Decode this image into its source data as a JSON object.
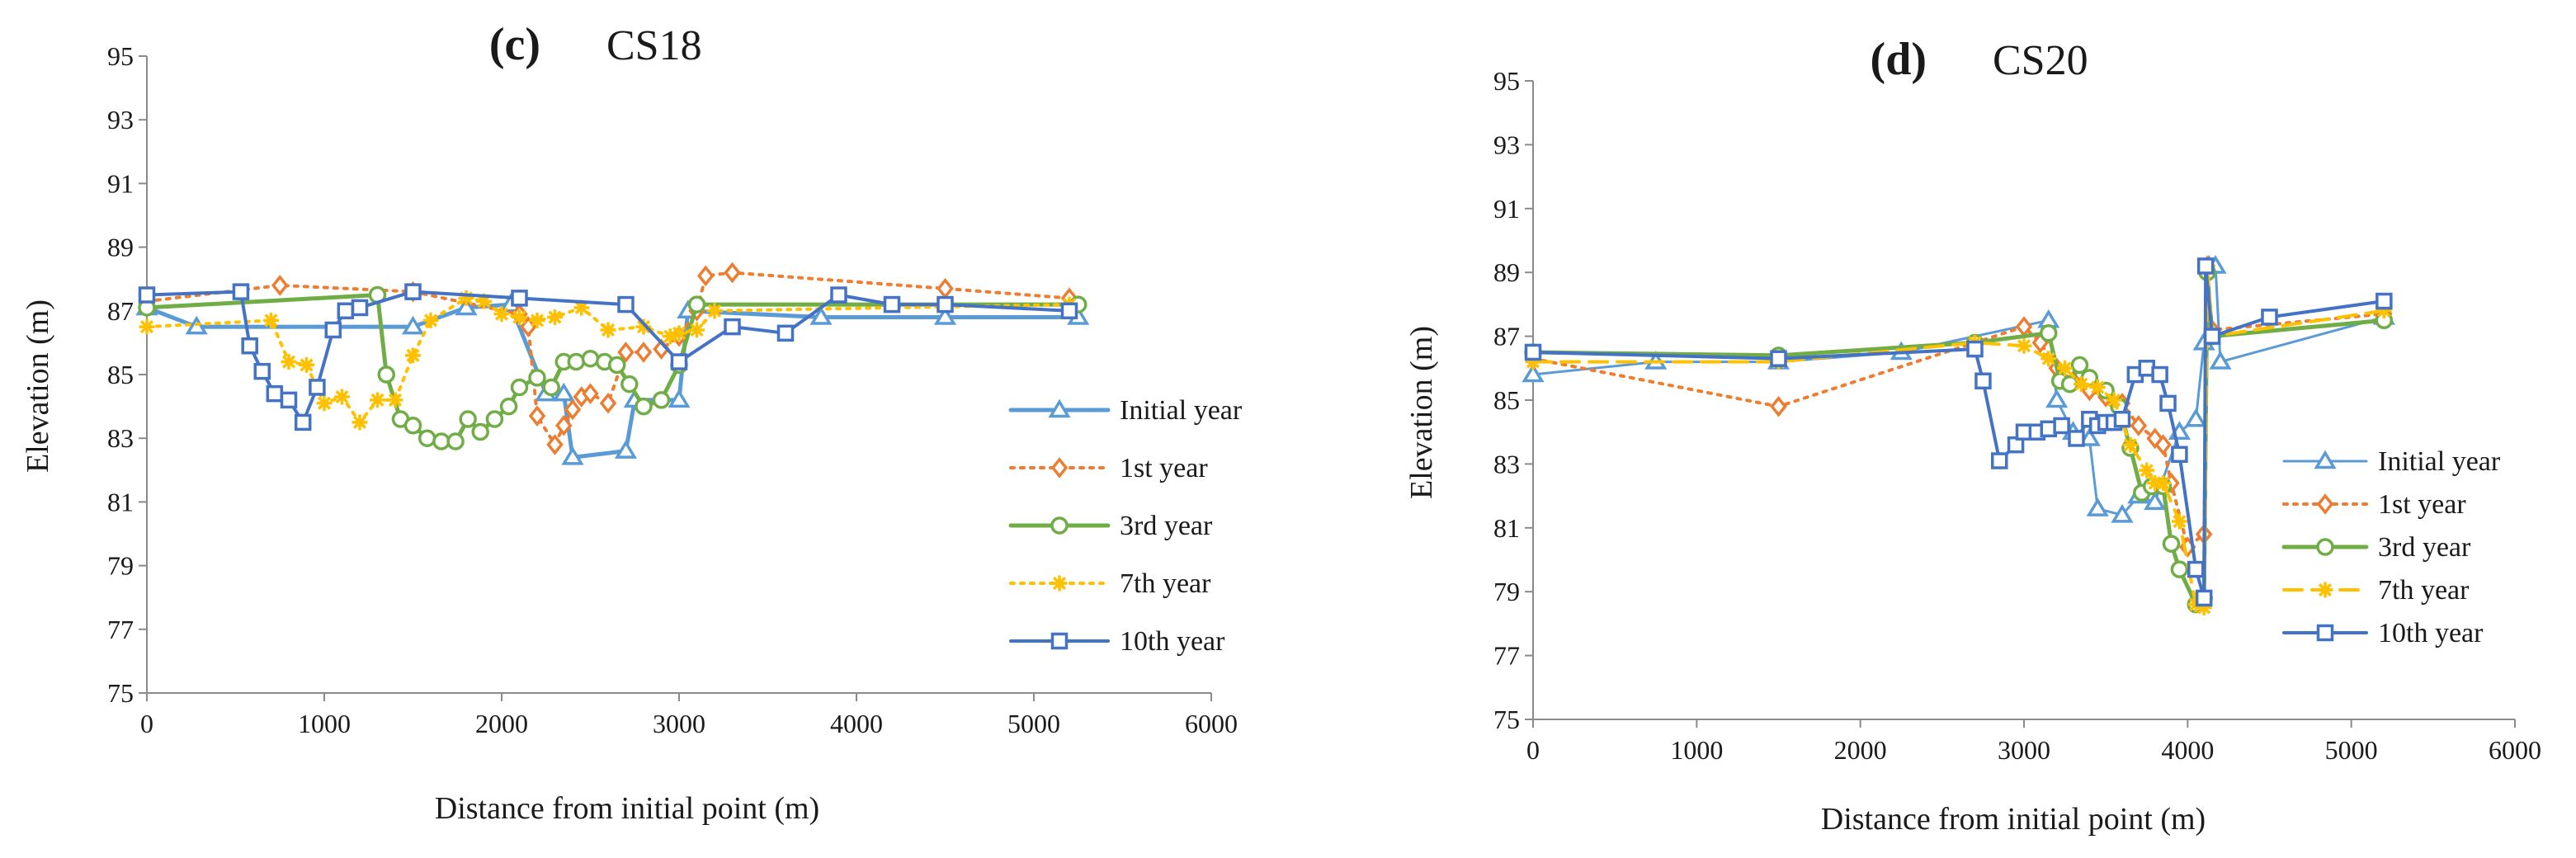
{
  "chart_data": [
    {
      "type": "line",
      "panel": "(c)",
      "title": "CS18",
      "xlabel": "Distance from initial point (m)",
      "ylabel": "Elevation (m)",
      "xlim": [
        0,
        6000
      ],
      "ylim": [
        75,
        95
      ],
      "xticks": [
        0,
        1000,
        2000,
        3000,
        4000,
        5000,
        6000
      ],
      "yticks": [
        75,
        77,
        79,
        81,
        83,
        85,
        87,
        89,
        91,
        93,
        95
      ],
      "grid": false,
      "legend_position": "right",
      "series": [
        {
          "name": "Initial year",
          "color": "#5b9bd5",
          "marker": "triangle",
          "dash": "solid",
          "width": 5,
          "x": [
            0,
            280,
            1500,
            1800,
            2050,
            2250,
            2350,
            2400,
            2700,
            2750,
            3000,
            3050,
            3800,
            4500,
            5250
          ],
          "y": [
            87.1,
            86.5,
            86.5,
            87.1,
            87.2,
            84.4,
            84.4,
            82.4,
            82.6,
            84.2,
            84.2,
            87.0,
            86.8,
            86.8,
            86.8
          ]
        },
        {
          "name": "1st year",
          "color": "#ed7d31",
          "marker": "diamond",
          "dash": "dot",
          "width": 4,
          "x": [
            0,
            750,
            1500,
            2100,
            2150,
            2200,
            2300,
            2350,
            2400,
            2450,
            2500,
            2600,
            2700,
            2800,
            2900,
            3000,
            3100,
            3150,
            3300,
            4500,
            5200
          ],
          "y": [
            87.3,
            87.8,
            87.6,
            86.9,
            86.5,
            83.7,
            82.8,
            83.4,
            83.9,
            84.3,
            84.4,
            84.1,
            85.7,
            85.7,
            85.8,
            86.2,
            87.0,
            88.1,
            88.2,
            87.7,
            87.4
          ]
        },
        {
          "name": "3rd year",
          "color": "#70ad47",
          "marker": "circle",
          "dash": "solid",
          "width": 5,
          "x": [
            0,
            1300,
            1350,
            1430,
            1500,
            1580,
            1660,
            1740,
            1810,
            1880,
            1960,
            2040,
            2100,
            2200,
            2280,
            2350,
            2420,
            2500,
            2580,
            2650,
            2720,
            2800,
            2900,
            3000,
            3100,
            5250
          ],
          "y": [
            87.1,
            87.5,
            85.0,
            83.6,
            83.4,
            83.0,
            82.9,
            82.9,
            83.6,
            83.2,
            83.6,
            84.0,
            84.6,
            84.9,
            84.6,
            85.4,
            85.4,
            85.5,
            85.4,
            85.3,
            84.7,
            84.0,
            84.2,
            85.3,
            87.2,
            87.2
          ]
        },
        {
          "name": "7th year",
          "color": "#ffc000",
          "marker": "star",
          "dash": "dot",
          "width": 4,
          "x": [
            0,
            700,
            800,
            900,
            1000,
            1100,
            1200,
            1300,
            1400,
            1500,
            1600,
            1800,
            1900,
            2000,
            2100,
            2200,
            2300,
            2450,
            2600,
            2800,
            2950,
            3000,
            3100,
            3200,
            5200
          ],
          "y": [
            86.5,
            86.7,
            85.4,
            85.3,
            84.1,
            84.3,
            83.5,
            84.2,
            84.2,
            85.6,
            86.7,
            87.4,
            87.3,
            86.9,
            86.8,
            86.7,
            86.8,
            87.1,
            86.4,
            86.5,
            86.2,
            86.3,
            86.4,
            87.0,
            87.2
          ]
        },
        {
          "name": "10th year",
          "color": "#4472c4",
          "marker": "square",
          "dash": "solid",
          "width": 4,
          "x": [
            0,
            530,
            580,
            650,
            720,
            800,
            880,
            960,
            1050,
            1120,
            1200,
            1500,
            2100,
            2700,
            3000,
            3300,
            3600,
            3900,
            4200,
            4500,
            5200
          ],
          "y": [
            87.5,
            87.6,
            85.9,
            85.1,
            84.4,
            84.2,
            83.5,
            84.6,
            86.4,
            87.0,
            87.1,
            87.6,
            87.4,
            87.2,
            85.4,
            86.5,
            86.3,
            87.5,
            87.2,
            87.2,
            87.0
          ]
        }
      ]
    },
    {
      "type": "line",
      "panel": "(d)",
      "title": "CS20",
      "xlabel": "Distance from initial point (m)",
      "ylabel": "Elevation (m)",
      "xlim": [
        0,
        6000
      ],
      "ylim": [
        75,
        95
      ],
      "xticks": [
        0,
        1000,
        2000,
        3000,
        4000,
        5000,
        6000
      ],
      "yticks": [
        75,
        77,
        79,
        81,
        83,
        85,
        87,
        89,
        91,
        93,
        95
      ],
      "grid": false,
      "legend_position": "right",
      "series": [
        {
          "name": "Initial year",
          "color": "#5b9bd5",
          "marker": "triangle",
          "dash": "solid",
          "width": 3,
          "x": [
            0,
            750,
            1500,
            2250,
            3150,
            3200,
            3300,
            3400,
            3450,
            3600,
            3700,
            3800,
            3950,
            4050,
            4100,
            4130,
            4170,
            4200,
            5200
          ],
          "y": [
            85.8,
            86.2,
            86.2,
            86.5,
            87.5,
            85.0,
            84.0,
            83.8,
            81.6,
            81.4,
            82.0,
            81.8,
            84.0,
            84.4,
            86.8,
            89.2,
            89.2,
            86.2,
            87.6
          ]
        },
        {
          "name": "1st year",
          "color": "#ed7d31",
          "marker": "diamond",
          "dash": "dot",
          "width": 4,
          "x": [
            0,
            1500,
            3000,
            3100,
            3200,
            3300,
            3400,
            3500,
            3600,
            3700,
            3800,
            3850,
            3900,
            4000,
            4100,
            4120,
            4150,
            5200
          ],
          "y": [
            86.3,
            84.8,
            87.3,
            86.8,
            86.0,
            85.6,
            85.3,
            85.1,
            84.9,
            84.2,
            83.8,
            83.6,
            82.4,
            80.4,
            80.8,
            89.2,
            87.2,
            87.7
          ]
        },
        {
          "name": "3rd year",
          "color": "#70ad47",
          "marker": "circle",
          "dash": "solid",
          "width": 5,
          "x": [
            0,
            1500,
            2700,
            3150,
            3220,
            3280,
            3340,
            3400,
            3500,
            3580,
            3650,
            3720,
            3780,
            3850,
            3900,
            3950,
            4050,
            4100,
            4120,
            4150,
            5200
          ],
          "y": [
            86.5,
            86.4,
            86.8,
            87.1,
            85.6,
            85.5,
            86.1,
            85.7,
            85.3,
            84.8,
            83.5,
            82.1,
            82.3,
            82.3,
            80.5,
            79.7,
            78.6,
            78.8,
            89.0,
            87.0,
            87.5
          ]
        },
        {
          "name": "7th year",
          "color": "#ffc000",
          "marker": "star",
          "dash": "dash",
          "width": 4,
          "x": [
            0,
            1500,
            2700,
            3000,
            3150,
            3250,
            3350,
            3450,
            3550,
            3650,
            3750,
            3800,
            3850,
            3950,
            4050,
            4100,
            4120,
            4150,
            5200
          ],
          "y": [
            86.2,
            86.2,
            86.8,
            86.7,
            86.3,
            86.0,
            85.5,
            85.4,
            85.0,
            83.6,
            82.8,
            82.4,
            82.4,
            81.2,
            78.6,
            78.5,
            89.2,
            87.0,
            87.8
          ]
        },
        {
          "name": "10th year",
          "color": "#4472c4",
          "marker": "square",
          "dash": "solid",
          "width": 4,
          "x": [
            0,
            1500,
            2700,
            2750,
            2850,
            2950,
            3000,
            3080,
            3150,
            3230,
            3320,
            3400,
            3450,
            3500,
            3550,
            3600,
            3680,
            3750,
            3830,
            3880,
            3950,
            4050,
            4100,
            4110,
            4150,
            4500,
            5200
          ],
          "y": [
            86.5,
            86.3,
            86.6,
            85.6,
            83.1,
            83.6,
            84.0,
            84.0,
            84.1,
            84.2,
            83.8,
            84.4,
            84.2,
            84.3,
            84.3,
            84.4,
            85.8,
            86.0,
            85.8,
            84.9,
            83.3,
            79.7,
            78.8,
            89.2,
            87.0,
            87.6,
            88.1
          ]
        }
      ]
    }
  ]
}
